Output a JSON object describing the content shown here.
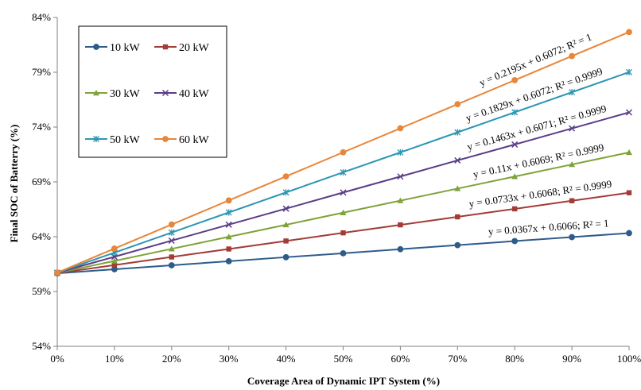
{
  "chart_data": {
    "type": "line",
    "xlabel": "Coverage Area of Dynamic IPT System (%)",
    "ylabel": "Final SOC of Batterry (%)",
    "x": [
      0,
      10,
      20,
      30,
      40,
      50,
      60,
      70,
      80,
      90,
      100
    ],
    "x_tick_labels": [
      "0%",
      "10%",
      "20%",
      "30%",
      "40%",
      "50%",
      "60%",
      "70%",
      "80%",
      "90%",
      "100%"
    ],
    "xlim": [
      0,
      100
    ],
    "y_ticks": [
      54,
      59,
      64,
      69,
      74,
      79,
      84
    ],
    "y_tick_labels": [
      "54%",
      "59%",
      "64%",
      "69%",
      "74%",
      "79%",
      "84%"
    ],
    "ylim": [
      54,
      84
    ],
    "grid": false,
    "legend_position": "top-left",
    "series": [
      {
        "name": "10 kW",
        "color": "#2E5C8A",
        "marker": "circle",
        "values": [
          60.66,
          61.03,
          61.39,
          61.76,
          62.13,
          62.49,
          62.86,
          63.23,
          63.6,
          63.96,
          64.33
        ],
        "trendline": "y = 0.0367x + 0.6066; R² = 1"
      },
      {
        "name": "20 kW",
        "color": "#A33B36",
        "marker": "square",
        "values": [
          60.68,
          61.41,
          62.15,
          62.88,
          63.61,
          64.35,
          65.08,
          65.81,
          66.54,
          67.28,
          68.01
        ],
        "trendline": "y = 0.0733x + 0.6068; R² = 0.9999"
      },
      {
        "name": "30 kW",
        "color": "#7FA33A",
        "marker": "triangle",
        "values": [
          60.69,
          61.79,
          62.89,
          63.99,
          65.09,
          66.19,
          67.29,
          68.39,
          69.49,
          70.59,
          71.69
        ],
        "trendline": "y = 0.11x + 0.6069; R² = 0.9999"
      },
      {
        "name": "40 kW",
        "color": "#5B3C87",
        "marker": "x",
        "values": [
          60.71,
          62.17,
          63.64,
          65.1,
          66.56,
          68.03,
          69.49,
          70.96,
          72.41,
          73.88,
          75.34
        ],
        "trendline": "y = 0.1463x + 0.6071; R² = 0.9999"
      },
      {
        "name": "50 kW",
        "color": "#2D96B3",
        "marker": "star",
        "values": [
          60.72,
          62.55,
          64.38,
          66.21,
          68.04,
          69.87,
          71.69,
          73.52,
          75.35,
          77.18,
          79.01
        ],
        "trendline": "y = 0.1829x + 0.6072; R² = 0.9999"
      },
      {
        "name": "60 kW",
        "color": "#E8863A",
        "marker": "circle",
        "values": [
          60.72,
          62.92,
          65.11,
          67.31,
          69.5,
          71.7,
          73.89,
          76.09,
          78.28,
          80.48,
          82.67
        ],
        "trendline": "y = 0.2195x + 0.6072; R² = 1"
      }
    ]
  }
}
